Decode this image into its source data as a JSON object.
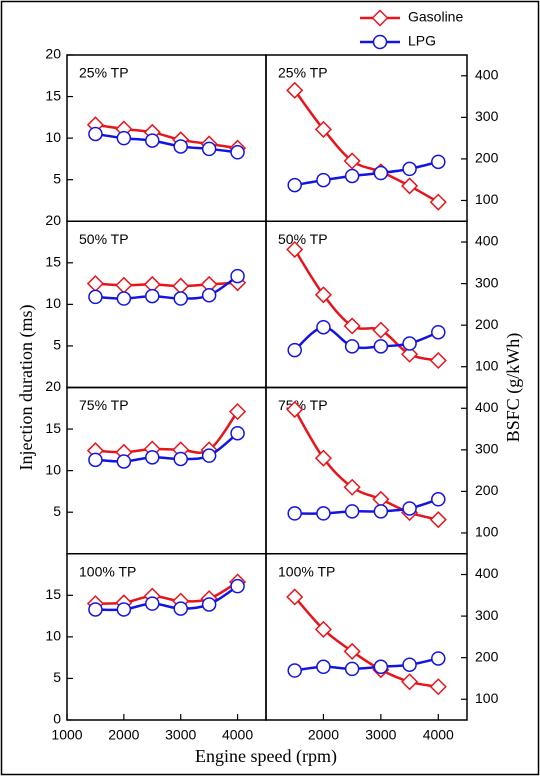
{
  "legend": [
    {
      "name": "Gasoline",
      "color": "#e8141b",
      "marker": "diamond"
    },
    {
      "name": "LPG",
      "color": "#1414e0",
      "marker": "circle"
    }
  ],
  "chart_data": [
    {
      "type": "line",
      "title": "25% TP",
      "ylabel": "Injection duration (ms)",
      "x": [
        1500,
        2000,
        2500,
        3000,
        3500,
        4000
      ],
      "xlim": [
        1000,
        4500
      ],
      "ylim": [
        0,
        20
      ],
      "yticks": [
        5,
        10,
        15,
        20
      ],
      "series": [
        {
          "values": [
            11.6,
            11.1,
            10.7,
            9.8,
            9.3,
            8.8
          ]
        },
        {
          "values": [
            10.5,
            10.0,
            9.7,
            9.0,
            8.7,
            8.3
          ]
        }
      ]
    },
    {
      "type": "line",
      "title": "25% TP",
      "ylabel": "BSFC (g/kWh)",
      "x": [
        1500,
        2000,
        2500,
        3000,
        3500,
        4000
      ],
      "xlim": [
        1000,
        4500
      ],
      "ylim": [
        50,
        450
      ],
      "yticks": [
        100,
        200,
        300,
        400
      ],
      "series": [
        {
          "values": [
            365,
            271,
            195,
            169,
            135,
            96
          ]
        },
        {
          "values": [
            137,
            149,
            159,
            166,
            176,
            193
          ]
        }
      ]
    },
    {
      "type": "line",
      "title": "50% TP",
      "x": [
        1500,
        2000,
        2500,
        3000,
        3500,
        4000
      ],
      "xlim": [
        1000,
        4500
      ],
      "ylim": [
        0,
        20
      ],
      "yticks": [
        5,
        10,
        15,
        20
      ],
      "series": [
        {
          "values": [
            12.5,
            12.3,
            12.4,
            12.2,
            12.4,
            12.6
          ]
        },
        {
          "values": [
            10.9,
            10.7,
            11.0,
            10.7,
            11.1,
            13.4
          ]
        }
      ]
    },
    {
      "type": "line",
      "title": "50% TP",
      "x": [
        1500,
        2000,
        2500,
        3000,
        3500,
        4000
      ],
      "xlim": [
        1000,
        4500
      ],
      "ylim": [
        50,
        450
      ],
      "yticks": [
        100,
        200,
        300,
        400
      ],
      "series": [
        {
          "values": [
            382,
            273,
            198,
            188,
            130,
            115
          ]
        },
        {
          "values": [
            140,
            195,
            149,
            149,
            156,
            183
          ]
        }
      ]
    },
    {
      "type": "line",
      "title": "75% TP",
      "x": [
        1500,
        2000,
        2500,
        3000,
        3500,
        4000
      ],
      "xlim": [
        1000,
        4500
      ],
      "ylim": [
        0,
        20
      ],
      "yticks": [
        5,
        10,
        15,
        20
      ],
      "series": [
        {
          "values": [
            12.4,
            12.2,
            12.6,
            12.5,
            12.5,
            17.1
          ]
        },
        {
          "values": [
            11.3,
            11.1,
            11.6,
            11.4,
            11.8,
            14.5
          ]
        }
      ]
    },
    {
      "type": "line",
      "title": "75% TP",
      "x": [
        1500,
        2000,
        2500,
        3000,
        3500,
        4000
      ],
      "xlim": [
        1000,
        4500
      ],
      "ylim": [
        50,
        450
      ],
      "yticks": [
        100,
        200,
        300,
        400
      ],
      "series": [
        {
          "values": [
            397,
            280,
            210,
            181,
            149,
            132
          ]
        },
        {
          "values": [
            147,
            147,
            152,
            152,
            159,
            181
          ]
        }
      ]
    },
    {
      "type": "line",
      "title": "100% TP",
      "xlabel": "Engine speed  (rpm)",
      "x": [
        1500,
        2000,
        2500,
        3000,
        3500,
        4000
      ],
      "xlim": [
        1000,
        4500
      ],
      "xticks": [
        1000,
        2000,
        3000,
        4000
      ],
      "ylim": [
        0,
        20
      ],
      "yticks": [
        0,
        5,
        10,
        15
      ],
      "series": [
        {
          "values": [
            14.0,
            14.1,
            14.9,
            14.3,
            14.6,
            16.6
          ]
        },
        {
          "values": [
            13.3,
            13.3,
            14.0,
            13.4,
            13.9,
            16.1
          ]
        }
      ]
    },
    {
      "type": "line",
      "title": "100% TP",
      "x": [
        1500,
        2000,
        2500,
        3000,
        3500,
        4000
      ],
      "xlim": [
        1000,
        4500
      ],
      "xticks": [
        2000,
        3000,
        4000
      ],
      "ylim": [
        50,
        450
      ],
      "yticks": [
        100,
        200,
        300,
        400
      ],
      "series": [
        {
          "values": [
            346,
            268,
            215,
            171,
            142,
            130
          ]
        },
        {
          "values": [
            169,
            178,
            173,
            178,
            183,
            198
          ]
        }
      ]
    }
  ]
}
